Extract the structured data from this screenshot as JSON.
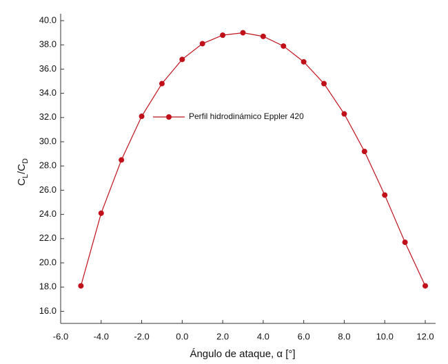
{
  "chart_data": {
    "type": "line",
    "x_label": "Ángulo de ataque, α [°]",
    "y_label_parts": [
      "C",
      "L",
      "/C",
      "D"
    ],
    "x": [
      -5,
      -4,
      -3,
      -2,
      -1,
      0,
      1,
      2,
      3,
      4,
      5,
      6,
      7,
      8,
      9,
      10,
      11,
      12
    ],
    "series": [
      {
        "name": "Perfil hidrodinámico Eppler 420",
        "color": "#c0101a",
        "values": [
          18.1,
          24.1,
          28.5,
          32.1,
          34.8,
          36.8,
          38.1,
          38.8,
          39.0,
          38.7,
          37.9,
          36.6,
          34.8,
          32.3,
          29.2,
          25.6,
          21.7,
          18.1
        ]
      }
    ],
    "xlim": [
      -6,
      12
    ],
    "ylim": [
      15,
      40
    ],
    "xticks": [
      {
        "value": -6,
        "label": "-6.0"
      },
      {
        "value": -4,
        "label": "-4.0"
      },
      {
        "value": -2,
        "label": "-2.0"
      },
      {
        "value": 0,
        "label": "0.0"
      },
      {
        "value": 2,
        "label": "2.0"
      },
      {
        "value": 4,
        "label": "4.0"
      },
      {
        "value": 6,
        "label": "6.0"
      },
      {
        "value": 8,
        "label": "8.0"
      },
      {
        "value": 10,
        "label": "10.0"
      },
      {
        "value": 12,
        "label": "12.0"
      }
    ],
    "yticks": [
      {
        "value": 16,
        "label": "16.0"
      },
      {
        "value": 18,
        "label": "18.0"
      },
      {
        "value": 20,
        "label": "20.0"
      },
      {
        "value": 22,
        "label": "22.0"
      },
      {
        "value": 24,
        "label": "24.0"
      },
      {
        "value": 26,
        "label": "26.0"
      },
      {
        "value": 28,
        "label": "28.0"
      },
      {
        "value": 30,
        "label": "30.0"
      },
      {
        "value": 32,
        "label": "32.0"
      },
      {
        "value": 34,
        "label": "34.0"
      },
      {
        "value": 36,
        "label": "36.0"
      },
      {
        "value": 38,
        "label": "38.0"
      },
      {
        "value": 40,
        "label": "40.0"
      }
    ],
    "grid": false
  }
}
